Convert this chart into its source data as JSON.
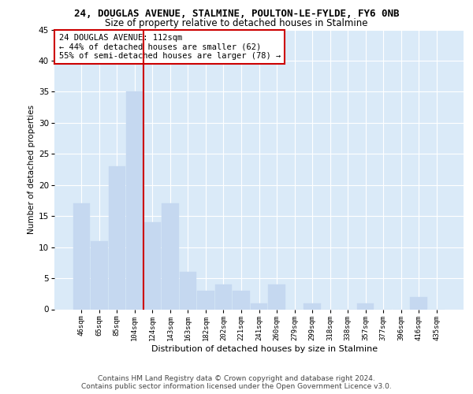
{
  "title_line1": "24, DOUGLAS AVENUE, STALMINE, POULTON-LE-FYLDE, FY6 0NB",
  "title_line2": "Size of property relative to detached houses in Stalmine",
  "xlabel": "Distribution of detached houses by size in Stalmine",
  "ylabel": "Number of detached properties",
  "categories": [
    "46sqm",
    "65sqm",
    "85sqm",
    "104sqm",
    "124sqm",
    "143sqm",
    "163sqm",
    "182sqm",
    "202sqm",
    "221sqm",
    "241sqm",
    "260sqm",
    "279sqm",
    "299sqm",
    "318sqm",
    "338sqm",
    "357sqm",
    "377sqm",
    "396sqm",
    "416sqm",
    "435sqm"
  ],
  "values": [
    17,
    11,
    23,
    35,
    14,
    17,
    6,
    3,
    4,
    3,
    1,
    4,
    0,
    1,
    0,
    0,
    1,
    0,
    0,
    2,
    0
  ],
  "bar_color": "#c5d8f0",
  "bar_edgecolor": "#c5d8f0",
  "vline_index": 3,
  "vline_color": "#cc0000",
  "annotation_text": "24 DOUGLAS AVENUE: 112sqm\n← 44% of detached houses are smaller (62)\n55% of semi-detached houses are larger (78) →",
  "annotation_box_edgecolor": "#cc0000",
  "annotation_fontsize": 7.5,
  "ylim": [
    0,
    45
  ],
  "yticks": [
    0,
    5,
    10,
    15,
    20,
    25,
    30,
    35,
    40,
    45
  ],
  "background_color": "#daeaf8",
  "footer": "Contains HM Land Registry data © Crown copyright and database right 2024.\nContains public sector information licensed under the Open Government Licence v3.0.",
  "footer_fontsize": 6.5,
  "title1_fontsize": 9,
  "title2_fontsize": 8.5,
  "xlabel_fontsize": 8,
  "ylabel_fontsize": 7.5
}
